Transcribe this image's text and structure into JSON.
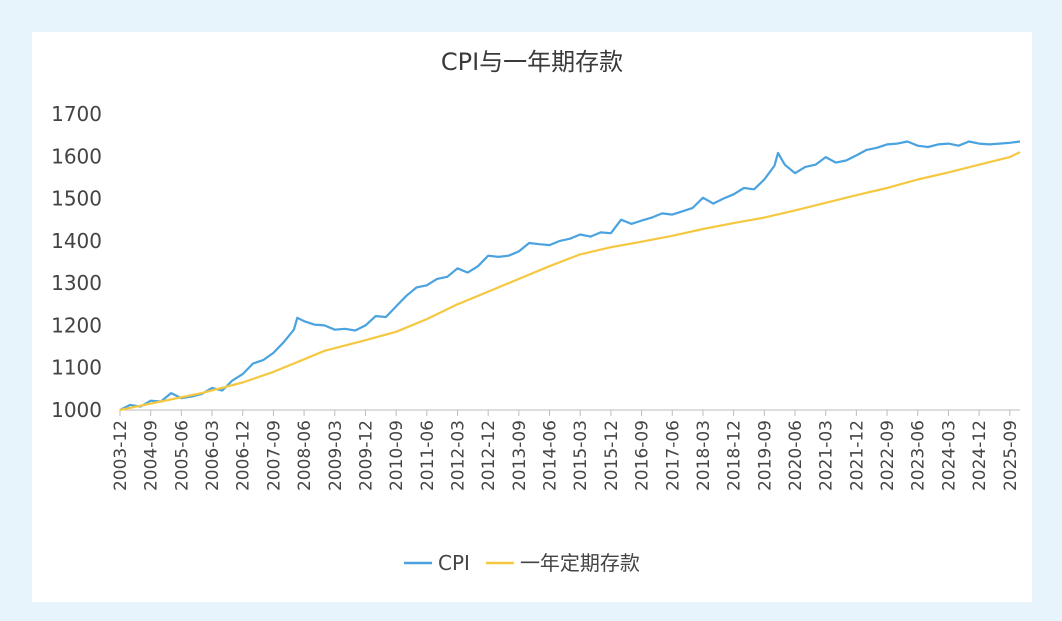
{
  "chart_data": {
    "type": "line",
    "title": "CPI与一年期存款",
    "xlabel": "",
    "ylabel": "",
    "ylim": [
      1000,
      1700
    ],
    "yticks": [
      "1700",
      "1600",
      "1500",
      "1400",
      "1300",
      "1200",
      "1100",
      "1000"
    ],
    "xticks": [
      "2003-12",
      "2004-09",
      "2005-06",
      "2006-03",
      "2006-12",
      "2007-09",
      "2008-06",
      "2009-03",
      "2009-12",
      "2010-09",
      "2011-06",
      "2012-03",
      "2012-12",
      "2013-09",
      "2014-06",
      "2015-03",
      "2015-12",
      "2016-09",
      "2017-06",
      "2018-03",
      "2018-12",
      "2019-09",
      "2020-06",
      "2021-03",
      "2021-12",
      "2022-09",
      "2023-06",
      "2024-03",
      "2024-12",
      "2025-09"
    ],
    "legend_position": "bottom",
    "grid": false,
    "series": [
      {
        "name": "CPI",
        "color": "#4aa3df",
        "points": [
          [
            "2003-12",
            1000
          ],
          [
            "2004-03",
            1012
          ],
          [
            "2004-06",
            1008
          ],
          [
            "2004-09",
            1022
          ],
          [
            "2004-12",
            1020
          ],
          [
            "2005-03",
            1040
          ],
          [
            "2005-06",
            1028
          ],
          [
            "2005-09",
            1032
          ],
          [
            "2005-12",
            1038
          ],
          [
            "2006-03",
            1052
          ],
          [
            "2006-06",
            1046
          ],
          [
            "2006-09",
            1070
          ],
          [
            "2006-12",
            1085
          ],
          [
            "2007-03",
            1110
          ],
          [
            "2007-06",
            1118
          ],
          [
            "2007-09",
            1135
          ],
          [
            "2007-12",
            1160
          ],
          [
            "2008-03",
            1190
          ],
          [
            "2008-04",
            1218
          ],
          [
            "2008-06",
            1210
          ],
          [
            "2008-09",
            1202
          ],
          [
            "2008-12",
            1200
          ],
          [
            "2009-03",
            1190
          ],
          [
            "2009-06",
            1192
          ],
          [
            "2009-09",
            1188
          ],
          [
            "2009-12",
            1200
          ],
          [
            "2010-03",
            1222
          ],
          [
            "2010-06",
            1220
          ],
          [
            "2010-09",
            1245
          ],
          [
            "2010-12",
            1270
          ],
          [
            "2011-03",
            1290
          ],
          [
            "2011-06",
            1295
          ],
          [
            "2011-09",
            1310
          ],
          [
            "2011-12",
            1315
          ],
          [
            "2012-03",
            1335
          ],
          [
            "2012-06",
            1325
          ],
          [
            "2012-09",
            1340
          ],
          [
            "2012-12",
            1365
          ],
          [
            "2013-03",
            1362
          ],
          [
            "2013-06",
            1365
          ],
          [
            "2013-09",
            1375
          ],
          [
            "2013-12",
            1395
          ],
          [
            "2014-03",
            1392
          ],
          [
            "2014-06",
            1390
          ],
          [
            "2014-09",
            1400
          ],
          [
            "2014-12",
            1405
          ],
          [
            "2015-03",
            1415
          ],
          [
            "2015-06",
            1410
          ],
          [
            "2015-09",
            1420
          ],
          [
            "2015-12",
            1418
          ],
          [
            "2016-03",
            1450
          ],
          [
            "2016-06",
            1440
          ],
          [
            "2016-09",
            1448
          ],
          [
            "2016-12",
            1455
          ],
          [
            "2017-03",
            1465
          ],
          [
            "2017-06",
            1462
          ],
          [
            "2017-09",
            1470
          ],
          [
            "2017-12",
            1478
          ],
          [
            "2018-03",
            1502
          ],
          [
            "2018-06",
            1488
          ],
          [
            "2018-09",
            1500
          ],
          [
            "2018-12",
            1510
          ],
          [
            "2019-03",
            1525
          ],
          [
            "2019-06",
            1522
          ],
          [
            "2019-09",
            1545
          ],
          [
            "2019-12",
            1578
          ],
          [
            "2020-01",
            1608
          ],
          [
            "2020-03",
            1580
          ],
          [
            "2020-06",
            1560
          ],
          [
            "2020-09",
            1575
          ],
          [
            "2020-12",
            1580
          ],
          [
            "2021-03",
            1598
          ],
          [
            "2021-06",
            1585
          ],
          [
            "2021-09",
            1590
          ],
          [
            "2021-12",
            1602
          ],
          [
            "2022-03",
            1615
          ],
          [
            "2022-06",
            1620
          ],
          [
            "2022-09",
            1628
          ],
          [
            "2022-12",
            1630
          ],
          [
            "2023-03",
            1635
          ],
          [
            "2023-06",
            1625
          ],
          [
            "2023-09",
            1622
          ],
          [
            "2023-12",
            1628
          ],
          [
            "2024-03",
            1630
          ],
          [
            "2024-06",
            1625
          ],
          [
            "2024-09",
            1635
          ],
          [
            "2024-12",
            1630
          ],
          [
            "2025-03",
            1628
          ],
          [
            "2025-06",
            1630
          ],
          [
            "2025-09",
            1632
          ],
          [
            "2025-12",
            1635
          ]
        ]
      },
      {
        "name": "一年定期存款",
        "color": "#f5c842",
        "points": [
          [
            "2003-12",
            1000
          ],
          [
            "2004-12",
            1020
          ],
          [
            "2005-12",
            1040
          ],
          [
            "2006-12",
            1065
          ],
          [
            "2007-09",
            1090
          ],
          [
            "2008-06",
            1120
          ],
          [
            "2008-12",
            1140
          ],
          [
            "2009-12",
            1165
          ],
          [
            "2010-09",
            1185
          ],
          [
            "2011-06",
            1215
          ],
          [
            "2012-03",
            1250
          ],
          [
            "2012-12",
            1280
          ],
          [
            "2013-09",
            1310
          ],
          [
            "2014-06",
            1340
          ],
          [
            "2015-03",
            1368
          ],
          [
            "2015-12",
            1385
          ],
          [
            "2016-09",
            1398
          ],
          [
            "2017-06",
            1412
          ],
          [
            "2018-03",
            1428
          ],
          [
            "2018-12",
            1442
          ],
          [
            "2019-09",
            1455
          ],
          [
            "2020-06",
            1472
          ],
          [
            "2021-03",
            1490
          ],
          [
            "2021-12",
            1508
          ],
          [
            "2022-09",
            1525
          ],
          [
            "2023-06",
            1545
          ],
          [
            "2024-03",
            1562
          ],
          [
            "2024-12",
            1580
          ],
          [
            "2025-09",
            1598
          ],
          [
            "2025-12",
            1610
          ]
        ]
      }
    ]
  }
}
